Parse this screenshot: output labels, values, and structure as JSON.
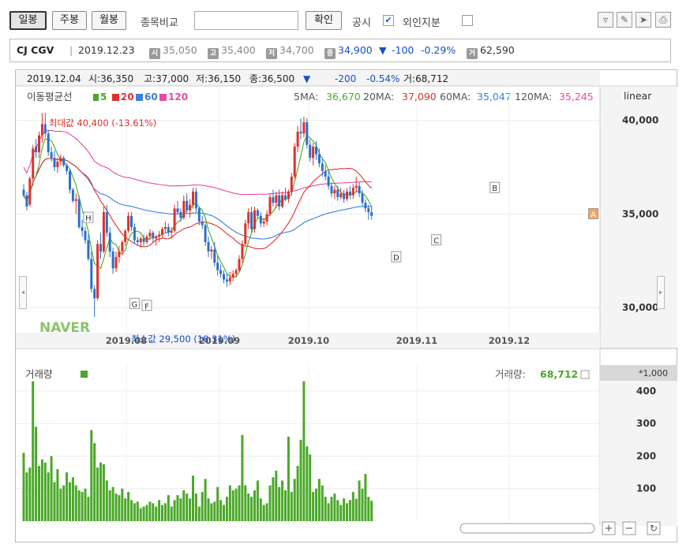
{
  "toolbar": {
    "daily": "일봉",
    "weekly": "주봉",
    "monthly": "월봉",
    "compare_label": "종목비교",
    "compare_value": "",
    "confirm": "확인",
    "disclosure": "공시",
    "disclosure_checked": "✔",
    "foreign_label": "외인지분",
    "foreign_checked": ""
  },
  "tool_icons": [
    "filter-icon",
    "pen-icon",
    "pointer-icon",
    "print-icon"
  ],
  "info": {
    "name": "CJ CGV",
    "date": "2019.12.23",
    "open_key": "시",
    "open": "35,050",
    "high_key": "고",
    "high": "35,400",
    "low_key": "저",
    "low": "34,700",
    "close_key": "종",
    "close": "34,900",
    "change_arrow": "▼",
    "change": "-100",
    "change_pct": "-0.29%",
    "volume_key": "거",
    "volume": "62,590"
  },
  "cursor": {
    "date": "2019.12.04",
    "open_key": "시",
    "open": "36,350",
    "high_key": "고",
    "high": "37,000",
    "low_key": "저",
    "low": "36,150",
    "close_key": "종",
    "close": "36,500",
    "arrow": "▼",
    "change": "-200",
    "change_pct": "-0.54%",
    "volume_key": "거",
    "volume": "68,712"
  },
  "legend": {
    "title": "이동평균선",
    "ma5": "5",
    "ma20": "20",
    "ma60": "60",
    "ma120": "120",
    "scale": "linear"
  },
  "ma_values": {
    "ma5_label": "5MA:",
    "ma5": "36,670",
    "ma20_label": "20MA:",
    "ma20": "37,090",
    "ma60_label": "60MA:",
    "ma60": "35,047",
    "ma120_label": "120MA:",
    "ma120": "35,245"
  },
  "annotations": {
    "max": "최대값 40,400 (-13.61%)",
    "min": "최소값 29,500 (18.31%)",
    "logo": "NAVER"
  },
  "volume": {
    "title": "거래량",
    "value_label": "거래량:",
    "value": "68,712",
    "unit": "*1,000"
  },
  "colors": {
    "up": "#e0302a",
    "down": "#2c6fc9",
    "ma5": "#4aa828",
    "ma20": "#e0302a",
    "ma60": "#3a7fdc",
    "ma120": "#e84aa0",
    "volume": "#4aa828"
  },
  "chart_data": {
    "type": "candlestick",
    "price_axis": {
      "ticks": [
        30000,
        35000,
        40000
      ],
      "tick_labels": [
        "30,000",
        "35,000",
        "40,000"
      ],
      "range": [
        28700,
        41800
      ]
    },
    "volume_axis": {
      "ticks": [
        100,
        200,
        300,
        400
      ],
      "range": [
        0,
        470
      ],
      "unit": "*1,000"
    },
    "x_labels": [
      "2019.08",
      "2019.09",
      "2019.10",
      "2019.11",
      "2019.12"
    ],
    "candles": [
      [
        36300,
        36600,
        35900,
        36000,
        210
      ],
      [
        36000,
        36200,
        35200,
        35400,
        150
      ],
      [
        35500,
        37000,
        35400,
        36900,
        165
      ],
      [
        36900,
        38700,
        36500,
        38500,
        430
      ],
      [
        38600,
        39000,
        38000,
        38300,
        290
      ],
      [
        38300,
        39400,
        38000,
        39200,
        170
      ],
      [
        39200,
        40400,
        38800,
        39800,
        190
      ],
      [
        39800,
        40400,
        39100,
        39300,
        180
      ],
      [
        39300,
        39500,
        38100,
        38300,
        150
      ],
      [
        38300,
        38600,
        37800,
        38000,
        200
      ],
      [
        38000,
        38400,
        37300,
        37500,
        120
      ],
      [
        37500,
        38000,
        37200,
        37800,
        160
      ],
      [
        37800,
        38200,
        37600,
        38000,
        100
      ],
      [
        38000,
        38100,
        37500,
        37600,
        110
      ],
      [
        37600,
        37700,
        37100,
        37300,
        150
      ],
      [
        37300,
        37400,
        36100,
        36300,
        120
      ],
      [
        36300,
        36400,
        35600,
        35700,
        135
      ],
      [
        35700,
        36100,
        35000,
        35800,
        110
      ],
      [
        35800,
        36000,
        34200,
        34300,
        95
      ],
      [
        34300,
        34700,
        33800,
        34100,
        90
      ],
      [
        34100,
        34300,
        33400,
        33600,
        100
      ],
      [
        33600,
        33900,
        32500,
        32600,
        75
      ],
      [
        32600,
        33000,
        30800,
        31000,
        280
      ],
      [
        31000,
        31200,
        29500,
        30500,
        240
      ],
      [
        30500,
        33600,
        30400,
        33400,
        165
      ],
      [
        33400,
        34000,
        32600,
        33000,
        180
      ],
      [
        33000,
        35400,
        32900,
        35100,
        175
      ],
      [
        35100,
        35500,
        33800,
        34000,
        125
      ],
      [
        34000,
        34300,
        32700,
        33000,
        95
      ],
      [
        33000,
        33200,
        31800,
        32100,
        105
      ],
      [
        32100,
        33000,
        31900,
        32700,
        85
      ],
      [
        32700,
        33300,
        32400,
        33000,
        80
      ],
      [
        33000,
        33600,
        32800,
        33500,
        100
      ],
      [
        33500,
        34200,
        33300,
        34100,
        70
      ],
      [
        34100,
        35100,
        34000,
        34900,
        90
      ],
      [
        34900,
        35100,
        34100,
        34300,
        65
      ],
      [
        34300,
        34500,
        33400,
        33600,
        55
      ],
      [
        33600,
        33800,
        33300,
        33500,
        60
      ],
      [
        33500,
        33800,
        33200,
        33700,
        40
      ],
      [
        33700,
        33900,
        33300,
        33500,
        45
      ],
      [
        33500,
        33900,
        33400,
        33800,
        50
      ],
      [
        33800,
        34200,
        33600,
        34000,
        60
      ],
      [
        34000,
        34100,
        33500,
        33700,
        55
      ],
      [
        33700,
        33900,
        33300,
        33800,
        45
      ],
      [
        33800,
        34100,
        33500,
        33900,
        65
      ],
      [
        33900,
        34300,
        33700,
        34200,
        50
      ],
      [
        34200,
        34600,
        34000,
        34300,
        55
      ],
      [
        34300,
        34500,
        33800,
        34000,
        80
      ],
      [
        34000,
        34300,
        33700,
        34100,
        45
      ],
      [
        34100,
        35500,
        34000,
        35300,
        65
      ],
      [
        35300,
        35700,
        35000,
        35100,
        80
      ],
      [
        35100,
        35300,
        34600,
        34800,
        70
      ],
      [
        34800,
        36000,
        34700,
        35700,
        95
      ],
      [
        35700,
        36100,
        35000,
        35200,
        85
      ],
      [
        35200,
        35800,
        34800,
        35500,
        70
      ],
      [
        35500,
        36400,
        35300,
        36200,
        140
      ],
      [
        36200,
        36400,
        35100,
        35300,
        85
      ],
      [
        35300,
        35400,
        34400,
        34600,
        45
      ],
      [
        34600,
        34900,
        34200,
        34400,
        90
      ],
      [
        34400,
        34500,
        33300,
        33500,
        130
      ],
      [
        33500,
        33800,
        32700,
        33000,
        70
      ],
      [
        33000,
        33300,
        32600,
        33100,
        55
      ],
      [
        33100,
        33500,
        32200,
        32400,
        60
      ],
      [
        32400,
        32800,
        31700,
        32000,
        105
      ],
      [
        32000,
        32300,
        31600,
        31800,
        65
      ],
      [
        31800,
        32000,
        31300,
        31500,
        50
      ],
      [
        31500,
        31800,
        31100,
        31400,
        75
      ],
      [
        31400,
        31900,
        31200,
        31600,
        110
      ],
      [
        31600,
        32000,
        31400,
        31800,
        95
      ],
      [
        31800,
        32100,
        31600,
        32000,
        100
      ],
      [
        32000,
        32800,
        31900,
        32600,
        110
      ],
      [
        32600,
        33600,
        32400,
        33400,
        265
      ],
      [
        33400,
        34700,
        33300,
        34500,
        110
      ],
      [
        34500,
        35300,
        34200,
        35100,
        85
      ],
      [
        35100,
        35400,
        34000,
        34200,
        75
      ],
      [
        34200,
        35400,
        34000,
        35200,
        95
      ],
      [
        35200,
        35300,
        34800,
        34900,
        125
      ],
      [
        34900,
        35100,
        34300,
        34500,
        70
      ],
      [
        34500,
        34800,
        34300,
        34600,
        50
      ],
      [
        34600,
        35200,
        34400,
        35000,
        55
      ],
      [
        35000,
        36100,
        34900,
        35900,
        110
      ],
      [
        35900,
        36300,
        35400,
        35600,
        135
      ],
      [
        35600,
        36200,
        35300,
        36000,
        155
      ],
      [
        36000,
        36300,
        35200,
        35400,
        105
      ],
      [
        35400,
        36200,
        35300,
        36000,
        125
      ],
      [
        36000,
        36400,
        35700,
        35800,
        95
      ],
      [
        35800,
        36300,
        35600,
        36200,
        260
      ],
      [
        36200,
        37200,
        36000,
        37000,
        90
      ],
      [
        37000,
        38800,
        36900,
        38600,
        130
      ],
      [
        38600,
        39700,
        38300,
        39400,
        170
      ],
      [
        39400,
        40100,
        39000,
        39300,
        250
      ],
      [
        39300,
        40200,
        39100,
        39900,
        430
      ],
      [
        39900,
        40100,
        38500,
        38700,
        230
      ],
      [
        38700,
        39000,
        37800,
        38000,
        205
      ],
      [
        38000,
        38800,
        37600,
        38600,
        90
      ],
      [
        38600,
        38900,
        37900,
        38200,
        100
      ],
      [
        38200,
        38500,
        37500,
        37700,
        130
      ],
      [
        37700,
        38000,
        37000,
        37300,
        110
      ],
      [
        37300,
        37600,
        36800,
        37000,
        75
      ],
      [
        37000,
        37300,
        36300,
        36500,
        55
      ],
      [
        36500,
        36700,
        35900,
        36100,
        75
      ],
      [
        36100,
        36500,
        35800,
        36300,
        85
      ],
      [
        36300,
        36500,
        35700,
        35900,
        65
      ],
      [
        35900,
        36400,
        35800,
        36100,
        50
      ],
      [
        36100,
        36300,
        35600,
        35800,
        70
      ],
      [
        35800,
        36400,
        35700,
        36200,
        55
      ],
      [
        36200,
        36500,
        35800,
        36000,
        65
      ],
      [
        36000,
        36600,
        35800,
        36400,
        90
      ],
      [
        36400,
        37000,
        36150,
        36500,
        69
      ],
      [
        36500,
        36700,
        35900,
        36100,
        125
      ],
      [
        36100,
        36300,
        35400,
        35600,
        100
      ],
      [
        35600,
        35800,
        35100,
        35300,
        145
      ],
      [
        35300,
        35500,
        34700,
        35100,
        75
      ],
      [
        35100,
        35400,
        34700,
        34900,
        63
      ]
    ],
    "markers": [
      {
        "label": "H",
        "i": 21,
        "price": 34800
      },
      {
        "label": "G",
        "i": 36,
        "price": 30200
      },
      {
        "label": "F",
        "i": 40,
        "price": 30100
      },
      {
        "label": "D",
        "i": 121,
        "price": 32700
      },
      {
        "label": "C",
        "i": 134,
        "price": 33600
      },
      {
        "label": "B",
        "i": 153,
        "price": 36400
      },
      {
        "label": "A",
        "i": 185,
        "price": 35000
      }
    ]
  }
}
